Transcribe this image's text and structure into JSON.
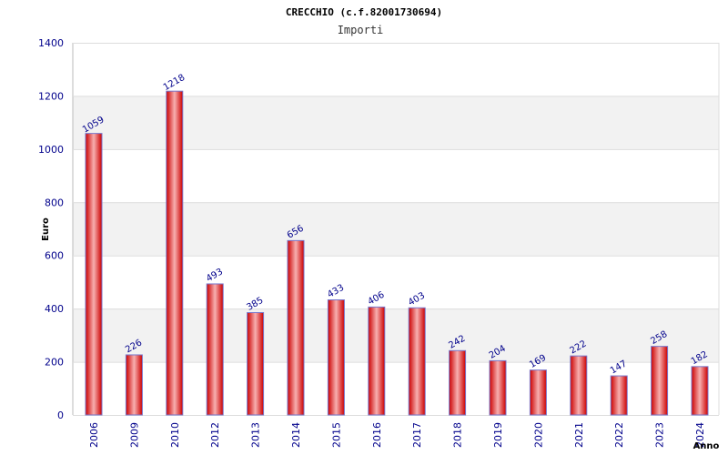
{
  "chart_data": {
    "type": "bar",
    "title": "CRECCHIO (c.f.82001730694)",
    "subtitle": "Importi",
    "xlabel": "Anno",
    "ylabel": "Euro",
    "categories": [
      "2006",
      "2009",
      "2010",
      "2012",
      "2013",
      "2014",
      "2015",
      "2016",
      "2017",
      "2018",
      "2019",
      "2020",
      "2021",
      "2022",
      "2023",
      "2024"
    ],
    "values": [
      1059,
      226,
      1218,
      493,
      385,
      656,
      433,
      406,
      403,
      242,
      204,
      169,
      222,
      147,
      258,
      182
    ],
    "value_labels": [
      "1059",
      "226",
      "1218",
      "493",
      "385",
      "656",
      "433",
      "406",
      "403",
      "242",
      "204",
      "169",
      "222",
      "147",
      "258",
      "182"
    ],
    "ylim": [
      0,
      1400
    ],
    "yticks": [
      0,
      200,
      400,
      600,
      800,
      1000,
      1200,
      1400
    ],
    "ytick_labels": [
      "0",
      "200",
      "400",
      "600",
      "800",
      "1000",
      "1200",
      "1400"
    ],
    "grid": true,
    "colors": {
      "bar_edge": "#cc0000",
      "bar_center": "#f7b0b0",
      "bar_outline": "#7777cc",
      "band": "#f2f2f2",
      "tick_text": "#00008b"
    }
  }
}
